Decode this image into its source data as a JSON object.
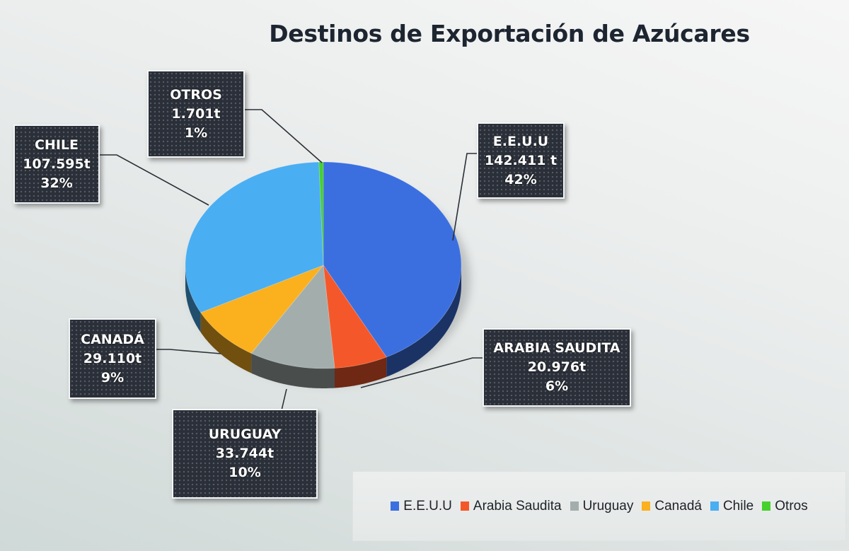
{
  "title": "Destinos de Exportación de Azúcares",
  "labels": {
    "eeuu": {
      "name": "E.E.U.U",
      "value": "142.411 t",
      "pct": "42%"
    },
    "arabia": {
      "name": "ARABIA SAUDITA",
      "value": "20.976t",
      "pct": "6%"
    },
    "uruguay": {
      "name": "URUGUAY",
      "value": "33.744t",
      "pct": "10%"
    },
    "canada": {
      "name": "CANADÁ",
      "value": "29.110t",
      "pct": "9%"
    },
    "chile": {
      "name": "CHILE",
      "value": "107.595t",
      "pct": "32%"
    },
    "otros": {
      "name": "OTROS",
      "value": "1.701t",
      "pct": "1%"
    }
  },
  "legend": [
    {
      "label": "E.E.U.U",
      "color": "#3b6fe0"
    },
    {
      "label": "Arabia Saudita",
      "color": "#f4582a"
    },
    {
      "label": "Uruguay",
      "color": "#a3aeac"
    },
    {
      "label": "Canadá",
      "color": "#fbb01e"
    },
    {
      "label": "Chile",
      "color": "#4aaef2"
    },
    {
      "label": "Otros",
      "color": "#46d12c"
    }
  ],
  "chart_data": {
    "type": "pie",
    "title": "Destinos de Exportación de Azúcares",
    "categories": [
      "E.E.U.U",
      "Arabia Saudita",
      "Uruguay",
      "Canadá",
      "Chile",
      "Otros"
    ],
    "values": [
      142411,
      20976,
      33744,
      29110,
      107595,
      1701
    ],
    "value_labels": [
      "142.411 t",
      "20.976t",
      "33.744t",
      "29.110t",
      "107.595t",
      "1.701t"
    ],
    "unit": "t",
    "percentages": [
      42,
      6,
      10,
      9,
      32,
      1
    ],
    "colors": [
      "#3b6fe0",
      "#f4582a",
      "#a3aeac",
      "#fbb01e",
      "#4aaef2",
      "#46d12c"
    ],
    "style": "3D pie",
    "legend_position": "bottom-right"
  }
}
